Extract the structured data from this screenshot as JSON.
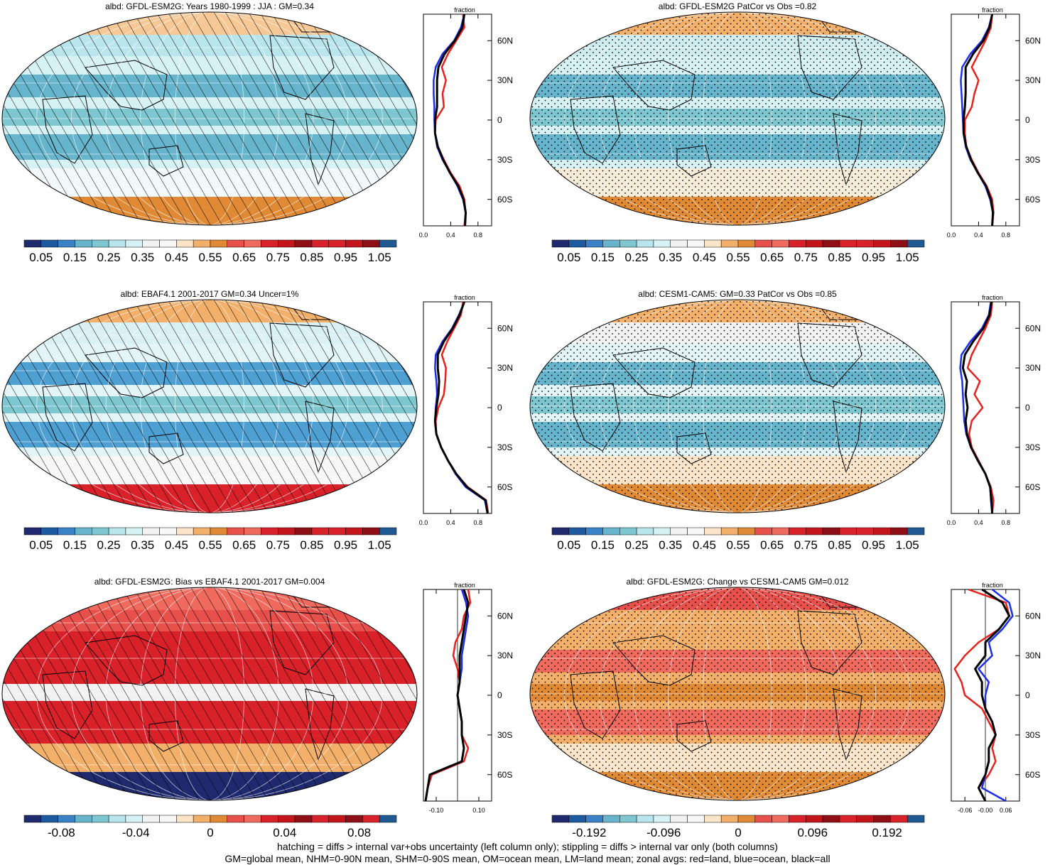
{
  "panels": [
    {
      "title": "albd: GFDL-ESM2G: Years 1980-1999 : JJA : GM=0.34",
      "kind": "abs",
      "overlay": "hatch",
      "map_colors": {
        "ocean_bg": "#d6f2f5",
        "tropics": "#7ec7d0",
        "subtropics": "#66b5cc",
        "nh_band": "#b9e5ec",
        "south_band": "#f2f9fb",
        "antarctic": "#e08a35",
        "arctic": "#f6c896"
      },
      "zonal_xticks": [
        "0.0",
        "0.4",
        "0.8"
      ],
      "colorbar_ticks": [
        "0.05",
        "0.15",
        "0.25",
        "0.35",
        "0.45",
        "0.55",
        "0.65",
        "0.75",
        "0.85",
        "0.95",
        "1.05"
      ],
      "zonal": {
        "xlim": [
          0,
          1.0
        ],
        "lat": [
          80,
          70,
          60,
          50,
          40,
          30,
          20,
          10,
          0,
          -10,
          -20,
          -30,
          -40,
          -50,
          -60,
          -70,
          -80
        ],
        "land": [
          0.58,
          0.6,
          0.48,
          0.36,
          0.27,
          0.33,
          0.28,
          0.3,
          0.18,
          0.17,
          0.21,
          0.3,
          0.4,
          0.53,
          0.6,
          0.62,
          0.6
        ],
        "ocean": [
          0.6,
          0.55,
          0.45,
          0.28,
          0.18,
          0.15,
          0.15,
          0.16,
          0.16,
          0.17,
          0.2,
          0.28,
          0.39,
          0.5,
          0.58,
          0.62,
          0.61
        ],
        "all": [
          0.6,
          0.57,
          0.46,
          0.31,
          0.22,
          0.2,
          0.2,
          0.2,
          0.17,
          0.17,
          0.21,
          0.29,
          0.39,
          0.51,
          0.59,
          0.62,
          0.61
        ]
      }
    },
    {
      "title": "albd: GFDL-ESM2G PatCor vs Obs =0.82",
      "kind": "abs",
      "overlay": "stipple",
      "map_colors": {
        "ocean_bg": "#d6f2f5",
        "tropics": "#7ec7d0",
        "subtropics": "#66b5cc",
        "nh_band": "#cfecf0",
        "south_band": "#f7ecd8",
        "antarctic": "#e08a35",
        "arctic": "#f3b06b"
      },
      "zonal_xticks": [
        "0.0",
        "0.4",
        "0.8"
      ],
      "colorbar_ticks": [
        "0.05",
        "0.15",
        "0.25",
        "0.35",
        "0.45",
        "0.55",
        "0.65",
        "0.75",
        "0.85",
        "0.95",
        "1.05"
      ],
      "zonal": {
        "xlim": [
          0,
          1.0
        ],
        "lat": [
          80,
          70,
          60,
          50,
          40,
          30,
          20,
          10,
          0,
          -10,
          -20,
          -30,
          -40,
          -50,
          -60,
          -70,
          -80
        ],
        "land": [
          0.6,
          0.58,
          0.5,
          0.4,
          0.3,
          0.4,
          0.34,
          0.3,
          0.2,
          0.2,
          0.22,
          0.3,
          0.4,
          0.52,
          0.6,
          0.62,
          0.6
        ],
        "ocean": [
          0.6,
          0.55,
          0.45,
          0.28,
          0.16,
          0.14,
          0.15,
          0.16,
          0.17,
          0.18,
          0.21,
          0.28,
          0.39,
          0.5,
          0.57,
          0.61,
          0.6
        ],
        "all": [
          0.6,
          0.56,
          0.47,
          0.32,
          0.21,
          0.21,
          0.21,
          0.2,
          0.18,
          0.18,
          0.22,
          0.29,
          0.39,
          0.51,
          0.58,
          0.61,
          0.6
        ]
      }
    },
    {
      "title": "albd: EBAF4.1 2001-2017 GM=0.34 Uncer=1%",
      "kind": "abs",
      "overlay": "hatch",
      "map_colors": {
        "ocean_bg": "#e3f5f7",
        "tropics": "#7ec7d0",
        "subtropics": "#4e9fd2",
        "nh_band": "#d9f1f4",
        "south_band": "#f7f7f7",
        "antarctic": "#d9212a",
        "arctic": "#f3b06b"
      },
      "zonal_xticks": [
        "0.0",
        "0.4",
        "0.8"
      ],
      "colorbar_ticks": [
        "0.05",
        "0.15",
        "0.25",
        "0.35",
        "0.45",
        "0.55",
        "0.65",
        "0.75",
        "0.85",
        "0.95",
        "1.05"
      ],
      "zonal": {
        "xlim": [
          0,
          1.0
        ],
        "lat": [
          80,
          70,
          60,
          50,
          40,
          30,
          20,
          10,
          0,
          -10,
          -20,
          -30,
          -40,
          -50,
          -60,
          -70,
          -80
        ],
        "land": [
          0.58,
          0.55,
          0.45,
          0.35,
          0.27,
          0.33,
          0.32,
          0.3,
          0.22,
          0.18,
          0.19,
          0.26,
          0.36,
          0.48,
          0.65,
          0.92,
          0.95
        ],
        "ocean": [
          0.6,
          0.52,
          0.42,
          0.28,
          0.18,
          0.17,
          0.19,
          0.2,
          0.18,
          0.17,
          0.19,
          0.26,
          0.36,
          0.47,
          0.62,
          0.9,
          0.94
        ],
        "all": [
          0.6,
          0.53,
          0.43,
          0.3,
          0.21,
          0.21,
          0.23,
          0.22,
          0.19,
          0.17,
          0.19,
          0.26,
          0.36,
          0.48,
          0.64,
          0.91,
          0.94
        ]
      }
    },
    {
      "title": "albd: CESM1-CAM5: GM=0.33 PatCor vs Obs =0.85",
      "kind": "abs",
      "overlay": "stipple",
      "map_colors": {
        "ocean_bg": "#e3f5f7",
        "tropics": "#7ec7d0",
        "subtropics": "#66b5cc",
        "nh_band": "#f2f2f2",
        "south_band": "#fbe4c8",
        "antarctic": "#e08a35",
        "arctic": "#f3b06b"
      },
      "zonal_xticks": [
        "0.0",
        "0.4",
        "0.8"
      ],
      "colorbar_ticks": [
        "0.05",
        "0.15",
        "0.25",
        "0.35",
        "0.45",
        "0.55",
        "0.65",
        "0.75",
        "0.85",
        "0.95",
        "1.05"
      ],
      "zonal": {
        "xlim": [
          0,
          1.0
        ],
        "lat": [
          80,
          70,
          60,
          50,
          40,
          30,
          20,
          10,
          0,
          -10,
          -20,
          -30,
          -40,
          -50,
          -60,
          -70,
          -80
        ],
        "land": [
          0.6,
          0.58,
          0.5,
          0.4,
          0.3,
          0.24,
          0.42,
          0.34,
          0.46,
          0.3,
          0.26,
          0.3,
          0.4,
          0.5,
          0.58,
          0.62,
          0.6
        ],
        "ocean": [
          0.58,
          0.55,
          0.45,
          0.28,
          0.15,
          0.13,
          0.16,
          0.17,
          0.18,
          0.19,
          0.22,
          0.29,
          0.39,
          0.5,
          0.57,
          0.58,
          0.6
        ],
        "all": [
          0.59,
          0.56,
          0.47,
          0.32,
          0.2,
          0.17,
          0.23,
          0.21,
          0.24,
          0.21,
          0.23,
          0.29,
          0.39,
          0.5,
          0.57,
          0.59,
          0.6
        ]
      }
    },
    {
      "title": "albd: GFDL-ESM2G: Bias vs EBAF4.1 2001-2017 GM=0.004",
      "kind": "diff",
      "overlay": "hatch",
      "map_colors": {
        "ocean_bg": "#d9212a",
        "tropics": "#f2f2f2",
        "subtropics": "#d9212a",
        "nh_band": "#e8504c",
        "south_band": "#f3b06b",
        "antarctic": "#1f2a6e",
        "arctic": "#f06a5e"
      },
      "zonal_xticks": [
        "-0.10",
        "0.10"
      ],
      "colorbar_ticks": [
        "-0.08",
        "-0.04",
        "0",
        "0.04",
        "0.08"
      ],
      "zonal": {
        "xlim": [
          -0.16,
          0.16
        ],
        "lat": [
          80,
          70,
          60,
          50,
          40,
          30,
          20,
          10,
          0,
          -10,
          -20,
          -30,
          -40,
          -50,
          -60,
          -70,
          -80
        ],
        "land": [
          0.05,
          0.06,
          0.03,
          0.02,
          -0.01,
          -0.02,
          0.0,
          0.01,
          0.0,
          0.01,
          0.02,
          0.02,
          0.05,
          0.03,
          -0.12,
          -0.14,
          -0.15
        ],
        "ocean": [
          0.02,
          0.04,
          0.05,
          0.04,
          0.03,
          0.02,
          0.02,
          0.01,
          0.0,
          0.01,
          0.02,
          0.02,
          0.03,
          0.02,
          -0.13,
          -0.14,
          -0.15
        ],
        "all": [
          0.03,
          0.05,
          0.04,
          0.03,
          0.02,
          0.01,
          0.01,
          0.01,
          0.0,
          0.01,
          0.02,
          0.02,
          0.03,
          0.02,
          -0.13,
          -0.14,
          -0.15
        ]
      }
    },
    {
      "title": "albd: GFDL-ESM2G: Change vs CESM1-CAM5 GM=0.012",
      "kind": "diff",
      "overlay": "stipple",
      "map_colors": {
        "ocean_bg": "#f3b06b",
        "tropics": "#e08a35",
        "subtropics": "#f06a5e",
        "nh_band": "#f3b06b",
        "south_band": "#fbe4c8",
        "antarctic": "#e08a35",
        "arctic": "#e8504c"
      },
      "zonal_xticks": [
        "-0.06",
        "-0.00",
        "0.06"
      ],
      "colorbar_ticks": [
        "-0.192",
        "-0.096",
        "0",
        "0.096",
        "0.192"
      ],
      "zonal": {
        "xlim": [
          -0.1,
          0.1
        ],
        "lat": [
          80,
          70,
          60,
          50,
          40,
          30,
          20,
          10,
          0,
          -10,
          -20,
          -30,
          -40,
          -50,
          -60,
          -70,
          -80
        ],
        "land": [
          -0.05,
          0.06,
          0.07,
          0.04,
          -0.02,
          -0.06,
          -0.09,
          -0.07,
          -0.06,
          -0.01,
          0.01,
          0.03,
          0.02,
          0.03,
          0.01,
          -0.02,
          0.0
        ],
        "ocean": [
          0.02,
          0.07,
          0.08,
          0.05,
          0.01,
          0.02,
          -0.02,
          0.01,
          0.0,
          0.0,
          0.02,
          0.03,
          0.01,
          0.01,
          0.0,
          -0.01,
          0.06
        ],
        "all": [
          -0.01,
          0.05,
          0.07,
          0.04,
          0.0,
          0.0,
          -0.03,
          -0.01,
          -0.01,
          0.0,
          0.02,
          0.03,
          0.01,
          0.01,
          0.0,
          -0.02,
          0.0
        ]
      }
    }
  ],
  "zonal_header": "fraction",
  "lat_labels": [
    "60N",
    "30N",
    "0",
    "30S",
    "60S"
  ],
  "colorbar_colors": [
    "#202a6e",
    "#1e5aa0",
    "#3a82c8",
    "#66b5cc",
    "#7ec7d0",
    "#b9e5ec",
    "#d6f2f5",
    "#f2f2f2",
    "#f7f7f7",
    "#fbe4c8",
    "#f3b06b",
    "#e08a35",
    "#e8504c",
    "#f06a5e",
    "#d9212a",
    "#c4151c",
    "#8e0f15",
    "#d9212a",
    "#d9212a",
    "#c4151c",
    "#8e0f15",
    "#1f5a93"
  ],
  "line_colors": {
    "land": "#e8211d",
    "ocean": "#1b2ee8",
    "all": "#000000"
  },
  "footer": {
    "line1": "hatching = diffs > internal var+obs uncertainty (left column only); stippling = diffs > internal var only (both columns)",
    "line2": "GM=global mean, NHM=0-90N mean, SHM=0-90S mean, OM=ocean mean, LM=land mean; zonal avgs: red=land, blue=ocean, black=all"
  }
}
